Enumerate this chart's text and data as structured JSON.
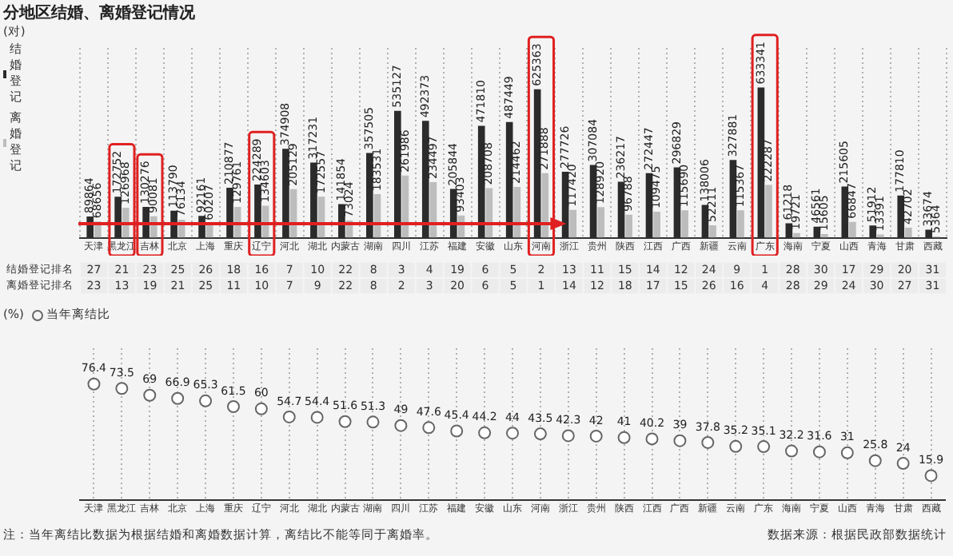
{
  "chart_data": [
    {
      "type": "bar",
      "title": "分地区结婚、离婚登记情况",
      "ylabel": "(对)",
      "categories": [
        "天津",
        "黑龙江",
        "吉林",
        "北京",
        "上海",
        "重庆",
        "辽宁",
        "河北",
        "湖北",
        "内蒙古",
        "湖南",
        "四川",
        "江苏",
        "福建",
        "安徽",
        "山东",
        "河南",
        "浙江",
        "贵州",
        "陕西",
        "江西",
        "广西",
        "新疆",
        "云南",
        "广东",
        "海南",
        "宁夏",
        "山西",
        "青海",
        "甘肃",
        "西藏"
      ],
      "series": [
        {
          "name": "结婚登记",
          "color": "#2b2b2b",
          "values": [
            89864,
            172752,
            130276,
            113790,
            92161,
            210877,
            224289,
            374908,
            317231,
            141854,
            357505,
            535127,
            492373,
            205844,
            471810,
            487449,
            625363,
            277726,
            307084,
            236217,
            272447,
            296829,
            138006,
            327881,
            633341,
            61218,
            46561,
            215605,
            51912,
            177810,
            33674
          ]
        },
        {
          "name": "离婚登记",
          "color": "#bdbdbd",
          "values": [
            68656,
            126968,
            90081,
            76134,
            60207,
            129761,
            134603,
            205129,
            172557,
            73024,
            183531,
            261986,
            234497,
            93403,
            208708,
            214462,
            271888,
            117420,
            128920,
            96788,
            109475,
            115690,
            52211,
            115367,
            222287,
            19721,
            15605,
            66847,
            13391,
            42702,
            5364
          ]
        }
      ],
      "data_labels": true,
      "legend": "top left",
      "grid": "x"
    },
    {
      "type": "heatmap",
      "categories": [
        null,
        null,
        null,
        null,
        null,
        null,
        null,
        null,
        null,
        null,
        null,
        null,
        null,
        null,
        null,
        null,
        null,
        null,
        null,
        null,
        null,
        null,
        null,
        null,
        null,
        null,
        null,
        null,
        null,
        null,
        null
      ],
      "y_categories": [
        "结婚登记排名",
        "离婚登记排名"
      ],
      "tick_labels": "y",
      "data_labels": true,
      "cells": [
        [
          27,
          21,
          23,
          25,
          26,
          18,
          16,
          7,
          10,
          22,
          8,
          3,
          4,
          19,
          6,
          5,
          2,
          13,
          11,
          15,
          14,
          12,
          24,
          9,
          1,
          28,
          30,
          17,
          29,
          20,
          31
        ],
        [
          23,
          13,
          19,
          21,
          25,
          11,
          10,
          7,
          9,
          22,
          8,
          2,
          3,
          20,
          6,
          5,
          1,
          14,
          12,
          18,
          17,
          15,
          26,
          16,
          4,
          28,
          29,
          24,
          30,
          27,
          31
        ]
      ]
    },
    {
      "type": "scatter",
      "ylabel": "(%)",
      "categories": [
        "天津",
        "黑龙江",
        "吉林",
        "北京",
        "上海",
        "重庆",
        "辽宁",
        "河北",
        "湖北",
        "内蒙古",
        "湖南",
        "四川",
        "江苏",
        "福建",
        "安徽",
        "山东",
        "河南",
        "浙江",
        "贵州",
        "陕西",
        "江西",
        "广西",
        "新疆",
        "云南",
        "广东",
        "海南",
        "宁夏",
        "山西",
        "青海",
        "甘肃",
        "西藏"
      ],
      "series": [
        {
          "name": "当年离结比",
          "color": "#666666",
          "values": [
            76.4,
            73.5,
            69.0,
            66.9,
            65.3,
            61.5,
            60.0,
            54.7,
            54.4,
            51.6,
            51.3,
            49.0,
            47.6,
            45.4,
            44.2,
            44.0,
            43.5,
            42.3,
            42.0,
            41.0,
            40.2,
            39.0,
            37.8,
            35.2,
            35.1,
            32.2,
            31.6,
            31.0,
            25.8,
            24.0,
            15.9
          ]
        }
      ],
      "data_labels": true,
      "marker": "circle",
      "legend": "top left",
      "grid": "x",
      "annotations": [
        "注：当年离结比数据为根据结婚和离婚数据计算，离结比不能等同于离婚率。",
        "数据来源：根据民政部数据统计"
      ]
    }
  ]
}
